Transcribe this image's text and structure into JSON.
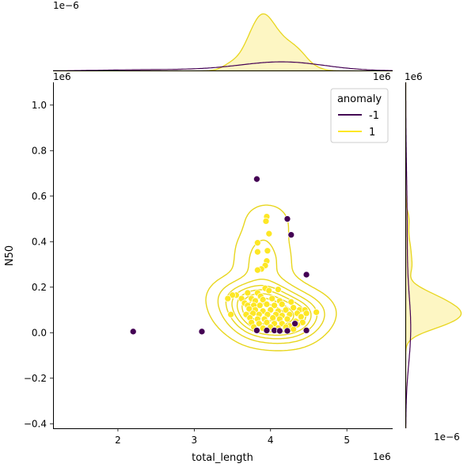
{
  "chart_data": {
    "type": "scatter",
    "kind": "jointplot-kde",
    "xlabel": "total_length",
    "ylabel": "N50",
    "x_offset_label": "1e6",
    "y_offset_label": "1e6",
    "top_marginal_offset_label": "1e−6",
    "right_marginal_offset_label": "1e−6",
    "xlim": [
      1.15,
      5.6
    ],
    "ylim": [
      -0.42,
      1.1
    ],
    "xticks": [
      2,
      3,
      4,
      5
    ],
    "yticks": [
      -0.4,
      -0.2,
      0.0,
      0.2,
      0.4,
      0.6,
      0.8,
      1.0
    ],
    "legend": {
      "title": "anomaly",
      "placement": "top-right",
      "entries": [
        {
          "label": "-1",
          "color": "#440154"
        },
        {
          "label": "1",
          "color": "#fde725"
        }
      ]
    },
    "colors": {
      "anomaly_neg": "#440154",
      "anomaly_pos": "#fde725",
      "kde_outline": "#e8d61e",
      "kde_fill": "#fdf6c3"
    },
    "series": [
      {
        "name": "-1",
        "points": [
          [
            2.2,
            0.005
          ],
          [
            3.1,
            0.005
          ],
          [
            3.82,
            0.675
          ],
          [
            4.22,
            0.5
          ],
          [
            4.27,
            0.43
          ],
          [
            4.47,
            0.255
          ],
          [
            3.82,
            0.01
          ],
          [
            3.95,
            0.01
          ],
          [
            4.05,
            0.01
          ],
          [
            4.12,
            0.008
          ],
          [
            4.22,
            0.008
          ],
          [
            4.32,
            0.04
          ],
          [
            4.47,
            0.01
          ]
        ]
      },
      {
        "name": "1",
        "points": [
          [
            3.95,
            0.51
          ],
          [
            3.94,
            0.49
          ],
          [
            3.98,
            0.435
          ],
          [
            3.83,
            0.395
          ],
          [
            3.96,
            0.36
          ],
          [
            3.83,
            0.355
          ],
          [
            3.95,
            0.315
          ],
          [
            3.93,
            0.295
          ],
          [
            3.88,
            0.28
          ],
          [
            3.83,
            0.275
          ],
          [
            4.1,
            0.19
          ],
          [
            3.93,
            0.195
          ],
          [
            3.98,
            0.185
          ],
          [
            3.55,
            0.165
          ],
          [
            3.5,
            0.165
          ],
          [
            3.7,
            0.175
          ],
          [
            3.83,
            0.175
          ],
          [
            3.87,
            0.16
          ],
          [
            3.44,
            0.15
          ],
          [
            3.62,
            0.15
          ],
          [
            3.75,
            0.15
          ],
          [
            3.8,
            0.14
          ],
          [
            3.9,
            0.145
          ],
          [
            4.02,
            0.15
          ],
          [
            4.12,
            0.14
          ],
          [
            4.27,
            0.135
          ],
          [
            3.66,
            0.13
          ],
          [
            3.7,
            0.12
          ],
          [
            3.78,
            0.12
          ],
          [
            3.86,
            0.12
          ],
          [
            3.95,
            0.125
          ],
          [
            4.05,
            0.12
          ],
          [
            4.15,
            0.125
          ],
          [
            4.3,
            0.11
          ],
          [
            4.38,
            0.1
          ],
          [
            4.45,
            0.1
          ],
          [
            3.72,
            0.105
          ],
          [
            3.8,
            0.1
          ],
          [
            3.9,
            0.095
          ],
          [
            4.0,
            0.1
          ],
          [
            4.1,
            0.095
          ],
          [
            4.2,
            0.1
          ],
          [
            4.35,
            0.085
          ],
          [
            4.47,
            0.085
          ],
          [
            4.6,
            0.09
          ],
          [
            3.48,
            0.08
          ],
          [
            3.68,
            0.08
          ],
          [
            3.77,
            0.085
          ],
          [
            3.85,
            0.08
          ],
          [
            3.96,
            0.08
          ],
          [
            4.07,
            0.08
          ],
          [
            4.15,
            0.075
          ],
          [
            4.25,
            0.08
          ],
          [
            4.4,
            0.07
          ],
          [
            3.73,
            0.065
          ],
          [
            3.83,
            0.06
          ],
          [
            3.92,
            0.06
          ],
          [
            4.03,
            0.065
          ],
          [
            4.12,
            0.06
          ],
          [
            4.22,
            0.06
          ],
          [
            4.33,
            0.05
          ],
          [
            4.42,
            0.045
          ],
          [
            3.75,
            0.045
          ],
          [
            3.85,
            0.04
          ],
          [
            3.95,
            0.045
          ],
          [
            4.05,
            0.04
          ],
          [
            4.15,
            0.04
          ],
          [
            4.25,
            0.03
          ],
          [
            4.35,
            0.035
          ],
          [
            3.78,
            0.025
          ],
          [
            3.9,
            0.02
          ],
          [
            4.0,
            0.025
          ],
          [
            4.1,
            0.02
          ],
          [
            4.2,
            0.025
          ],
          [
            4.3,
            0.015
          ]
        ]
      }
    ]
  }
}
